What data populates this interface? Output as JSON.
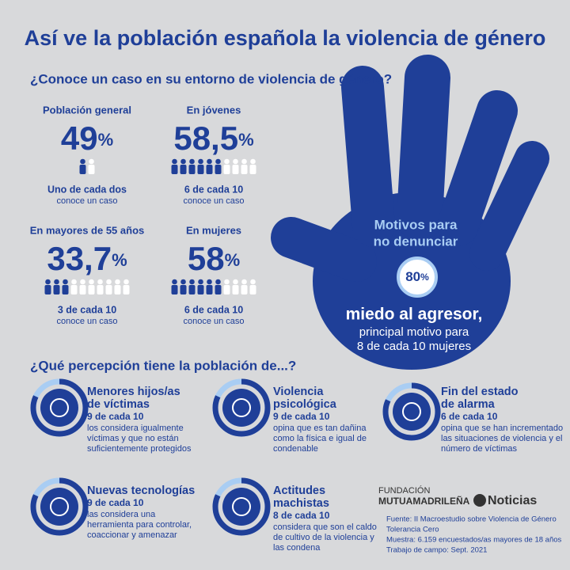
{
  "header": {
    "title": "Así ve la población española la violencia de género",
    "question": "¿Conoce un caso en su entorno de violencia de género?"
  },
  "stats": [
    {
      "label": "Población general",
      "value": "49",
      "unit": "%",
      "icons_filled": 1,
      "icons_total": 2,
      "caption": "Uno de cada dos",
      "note": "conoce un caso"
    },
    {
      "label": "En jóvenes",
      "value": "58,5",
      "unit": "%",
      "icons_filled": 6,
      "icons_total": 10,
      "caption": "6 de cada 10",
      "note": "conoce un caso"
    },
    {
      "label": "En mayores de 55 años",
      "value": "33,7",
      "unit": "%",
      "icons_filled": 3,
      "icons_total": 10,
      "caption": "3 de cada 10",
      "note": "conoce un caso"
    },
    {
      "label": "En mujeres",
      "value": "58",
      "unit": "%",
      "icons_filled": 6,
      "icons_total": 10,
      "caption": "6 de cada 10",
      "note": "conoce un caso"
    }
  ],
  "hand": {
    "title_lines": [
      "Motivos para",
      "no denunciar"
    ],
    "value": "80",
    "unit": "%",
    "headline": "miedo al agresor,",
    "lines": [
      "principal motivo para",
      "8 de cada 10 mujeres"
    ]
  },
  "perception": {
    "heading": "¿Qué percepción tiene la población de...?",
    "items": [
      {
        "title_lines": [
          "Menores hijos/as",
          "de víctimas"
        ],
        "stat": "9 de cada 10",
        "lines": [
          "los considera igualmente",
          "víctimas y que no están",
          "suficientemente protegidos"
        ]
      },
      {
        "title_lines": [
          "Violencia",
          "psicológica"
        ],
        "stat": "9 de cada 10",
        "lines": [
          "opina que es tan dañina",
          "como la física e igual de",
          "condenable"
        ]
      },
      {
        "title_lines": [
          "Fin del estado",
          "de alarma"
        ],
        "stat": "6 de cada 10",
        "lines": [
          "opina que se han incrementado",
          "las situaciones de violencia y el",
          "número de víctimas"
        ]
      },
      {
        "title_lines": [
          "Nuevas tecnologías"
        ],
        "stat": "9 de cada 10",
        "lines": [
          "las considera una",
          "herramienta para controlar,",
          "coaccionar y amenazar"
        ]
      },
      {
        "title_lines": [
          "Actitudes",
          "machistas"
        ],
        "stat": "8 de cada 10",
        "lines": [
          "considera que son el caldo",
          "de cultivo de la violencia y",
          "las condena"
        ]
      }
    ]
  },
  "footer": {
    "logo_top": "FUNDACIÓN",
    "logo_bottom": "MUTUAMADRILEÑA",
    "brand": "Noticias",
    "source": [
      "Fuente: II Macroestudio sobre Violencia de Género",
      "Tolerancia Cero",
      "Muestra: 6.159 encuestados/as mayores de 18 años",
      "Trabajo de campo: Sept. 2021"
    ]
  }
}
